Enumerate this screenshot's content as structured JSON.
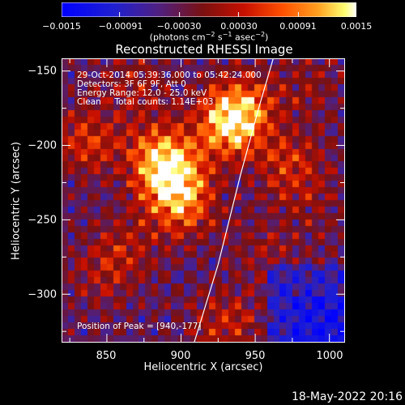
{
  "colorbar": {
    "tick_labels": [
      "−0.0015",
      "−0.00091",
      "−0.00030",
      "0.00030",
      "0.00091",
      "0.0015"
    ],
    "units_text": "(photons cm",
    "units_sup1": "−2",
    "units_mid": " s",
    "units_sup2": "−1",
    "units_mid2": " asec",
    "units_sup3": "−2",
    "units_end": ")"
  },
  "title": "Reconstructed RHESSI Image",
  "annotations": {
    "time_range": "29-Oct-2014 05:39:36.000 to 05:42:24.000",
    "detectors": "Detectors: 3F 6F 9F, Att 0",
    "energy": "Energy Range: 12.0 - 25.0 keV",
    "method": "Clean     Total counts: 1.14E+03",
    "peak": "Position of Peak = [940,-177]"
  },
  "axes": {
    "xlabel": "Heliocentric X (arcsec)",
    "ylabel": "Heliocentric Y (arcsec)",
    "xtick_labels": [
      "850",
      "900",
      "950",
      "1000"
    ],
    "ytick_labels": [
      "−150",
      "−200",
      "−250",
      "−300"
    ]
  },
  "footer": {
    "timestamp": "18-May-2022 20:16"
  },
  "chart_data": {
    "type": "heatmap",
    "title": "Reconstructed RHESSI Image",
    "xlabel": "Heliocentric X (arcsec)",
    "ylabel": "Heliocentric Y (arcsec)",
    "xlim": [
      820,
      1010
    ],
    "ylim": [
      -332,
      -142
    ],
    "xticks": [
      850,
      900,
      950,
      1000
    ],
    "yticks": [
      -150,
      -200,
      -250,
      -300
    ],
    "colorbar_range": [
      -0.0015,
      0.0015
    ],
    "colorbar_ticks": [
      -0.0015,
      -0.00091,
      -0.0003,
      0.0003,
      0.00091,
      0.0015
    ],
    "peak_position": [
      940,
      -177
    ],
    "limb_curve": [
      [
        909,
        -332
      ],
      [
        925,
        -280
      ],
      [
        940,
        -220
      ],
      [
        952,
        -176
      ],
      [
        962,
        -142
      ]
    ],
    "bright_regions": [
      {
        "x": 837,
        "y": -197,
        "level": 0.75
      },
      {
        "x": 893,
        "y": -220,
        "level": 0.95
      },
      {
        "x": 885,
        "y": -205,
        "level": 0.8
      },
      {
        "x": 900,
        "y": -240,
        "level": 0.85
      },
      {
        "x": 940,
        "y": -177,
        "level": 1.0
      },
      {
        "x": 930,
        "y": -190,
        "level": 0.8
      },
      {
        "x": 870,
        "y": -160,
        "level": 0.6
      },
      {
        "x": 860,
        "y": -270,
        "level": 0.65
      },
      {
        "x": 845,
        "y": -290,
        "level": 0.55
      },
      {
        "x": 930,
        "y": -320,
        "level": 0.7
      },
      {
        "x": 975,
        "y": -215,
        "level": 0.75
      },
      {
        "x": 990,
        "y": -245,
        "level": 0.5
      },
      {
        "x": 985,
        "y": -160,
        "level": 0.55
      },
      {
        "x": 955,
        "y": -270,
        "level": 0.55
      },
      {
        "x": 1000,
        "y": -290,
        "level": 0.45
      }
    ]
  }
}
